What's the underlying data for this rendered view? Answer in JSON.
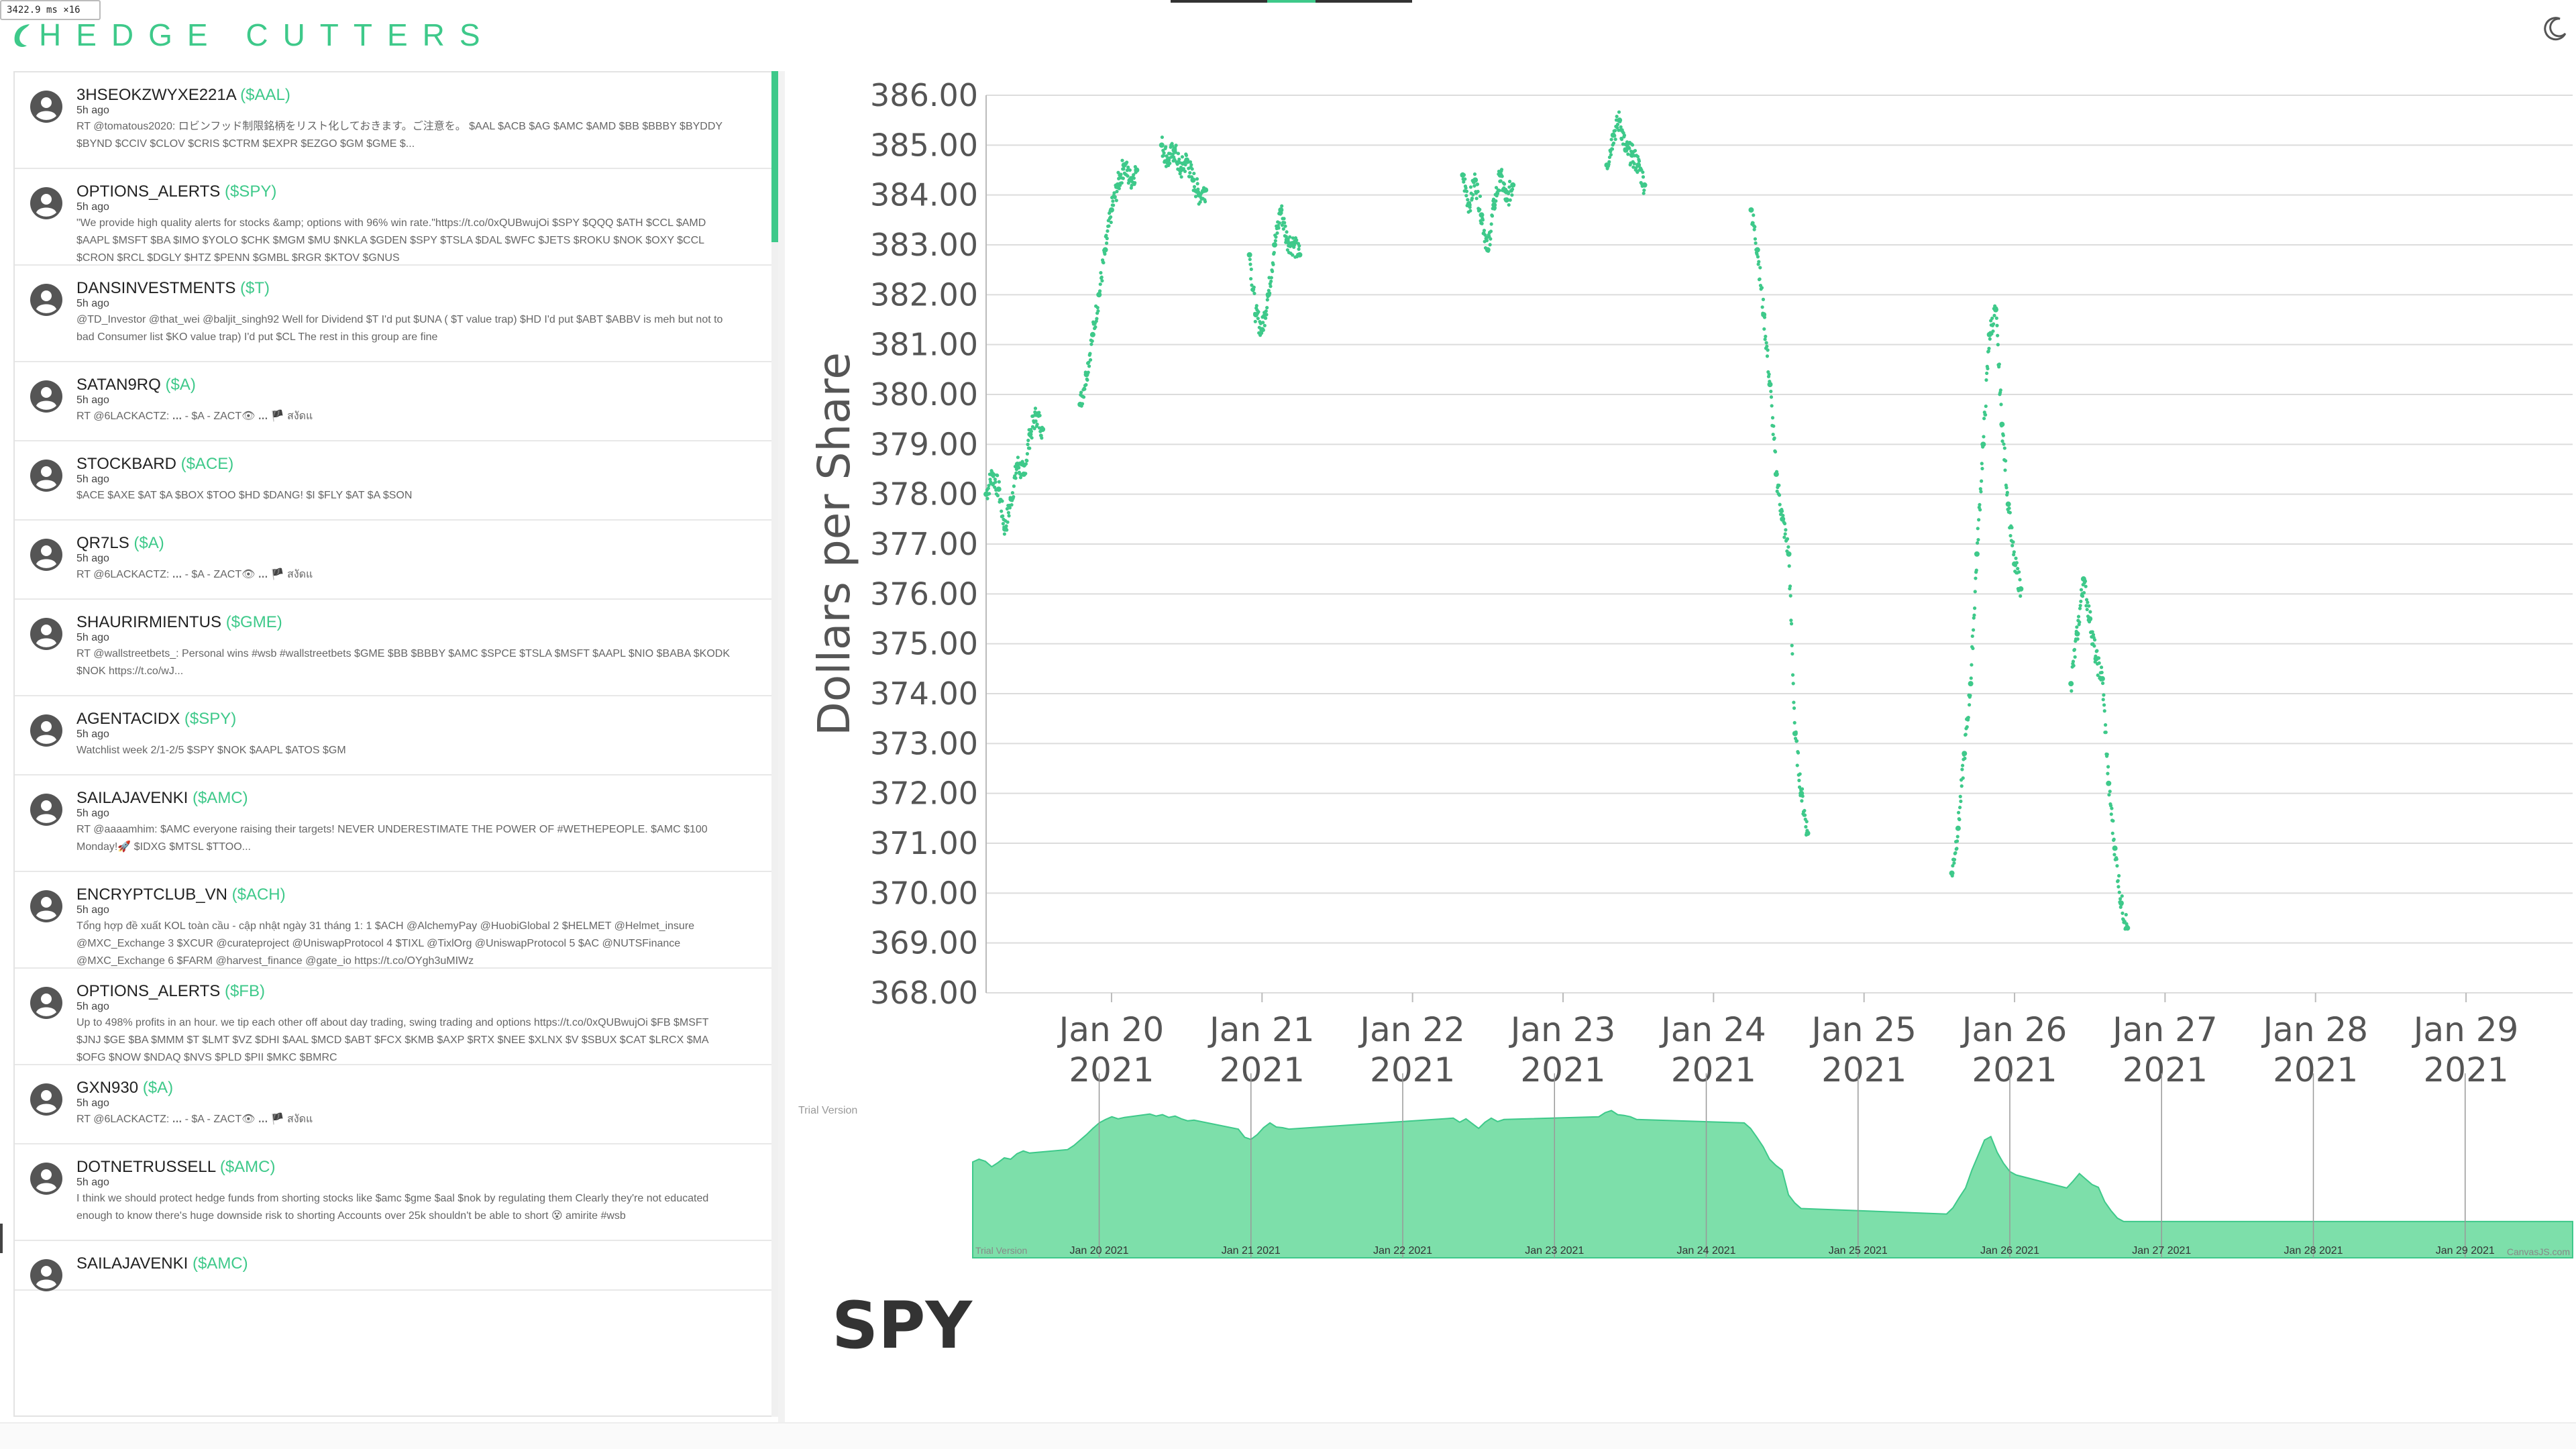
{
  "perf": {
    "readout": "3422.9 ms ×16"
  },
  "brand": {
    "title": "HEDGE CUTTERS"
  },
  "colors": {
    "accent": "#3ec98a",
    "accent_light": "#7ddfaa",
    "text_dark": "#333333"
  },
  "icons": {
    "theme": "moon-icon",
    "avatar": "user-avatar-icon",
    "logo": "leaf-logo-icon"
  },
  "feed": [
    {
      "handle": "3HSEOKZWYXE221A",
      "ticker": "($AAL)",
      "time": "5h ago",
      "text": "RT @tomatous2020: ロビンフッド制限銘柄をリスト化しておきます。ご注意を。 $AAL $ACB $AG $AMC $AMD $BB $BBBY $BYDDY $BYND $CCIV $CLOV $CRIS $CTRM $EXPR $EZGO $GM $GME $..."
    },
    {
      "handle": "OPTIONS_ALERTS",
      "ticker": "($SPY)",
      "time": "5h ago",
      "text": "\"We provide high quality alerts for stocks &amp; options with 96% win rate.\"https://t.co/0xQUBwujOi $SPY $QQQ $ATH $CCL $AMD $AAPL $MSFT $BA $IMO $YOLO $CHK $MGM $MU $NKLA $GDEN $SPY $TSLA $DAL $WFC $JETS $ROKU $NOK $OXY $CCL $CRON $RCL $DGLY $HTZ $PENN $GMBL $RGR $KTOV $GNUS"
    },
    {
      "handle": "DANSINVESTMENTS",
      "ticker": "($T)",
      "time": "5h ago",
      "text": "@TD_Investor @that_wei @baljit_singh92 Well for Dividend $T I'd put $UNA ( $T value trap) $HD I'd put $ABT $ABBV is meh but not to bad Consumer list $KO value trap) I'd put $CL The rest in this group are fine"
    },
    {
      "handle": "SATAN9RQ",
      "ticker": "($A)",
      "time": "5h ago",
      "text": "RT @6LACKACTZ: ꓸꓸꓸ - $A - ZACT👁 ꓸꓸꓸ 🏴 สงัดแ"
    },
    {
      "handle": "STOCKBARD",
      "ticker": "($ACE)",
      "time": "5h ago",
      "text": "$ACE $AXE $AT $A $BOX $TOO $HD $DANG! $I $FLY $AT $A $SON"
    },
    {
      "handle": "QR7LS",
      "ticker": "($A)",
      "time": "5h ago",
      "text": "RT @6LACKACTZ: ꓸꓸꓸ - $A - ZACT👁 ꓸꓸꓸ 🏴 สงัดแ"
    },
    {
      "handle": "SHAURIRMIENTUS",
      "ticker": "($GME)",
      "time": "5h ago",
      "text": "RT @wallstreetbets_: Personal wins #wsb #wallstreetbets $GME $BB $BBBY $AMC $SPCE $TSLA $MSFT $AAPL $NIO $BABA $KODK $NOK https://t.co/wJ..."
    },
    {
      "handle": "AGENTACIDX",
      "ticker": "($SPY)",
      "time": "5h ago",
      "text": "Watchlist week 2/1-2/5 $SPY $NOK $AAPL $ATOS $GM"
    },
    {
      "handle": "SAILAJAVENKI",
      "ticker": "($AMC)",
      "time": "5h ago",
      "text": "RT @aaaamhim: $AMC everyone raising their targets! NEVER UNDERESTIMATE THE POWER OF #WETHEPEOPLE. $AMC $100 Monday!🚀 $IDXG $MTSL $TTOO..."
    },
    {
      "handle": "ENCRYPTCLUB_VN",
      "ticker": "($ACH)",
      "time": "5h ago",
      "text": "Tổng hợp đề xuất KOL toàn cầu - cập nhật ngày 31 tháng 1: 1 $ACH @AlchemyPay @HuobiGlobal 2 $HELMET @Helmet_insure @MXC_Exchange 3 $XCUR @curateproject @UniswapProtocol 4 $TIXL @TixlOrg @UniswapProtocol 5 $AC @NUTSFinance @MXC_Exchange 6 $FARM @harvest_finance @gate_io https://t.co/OYgh3uMIWz"
    },
    {
      "handle": "OPTIONS_ALERTS",
      "ticker": "($FB)",
      "time": "5h ago",
      "text": "Up to 498% profits in an hour. we tip each other off about day trading, swing trading and options https://t.co/0xQUBwujOi $FB $MSFT $JNJ $GE $BA $MMM $T $LMT $VZ $DHI $AAL $MCD $ABT $FCX $KMB $AXP $RTX $NEE $XLNX $V $SBUX $CAT $LRCX $MA $OFG $NOW $NDAQ $NVS $PLD $PII $MKC $BMRC"
    },
    {
      "handle": "GXN930",
      "ticker": "($A)",
      "time": "5h ago",
      "text": "RT @6LACKACTZ: ꓸꓸꓸ - $A - ZACT👁 ꓸꓸꓸ 🏴 สงัดแ"
    },
    {
      "handle": "DOTNETRUSSELL",
      "ticker": "($AMC)",
      "time": "5h ago",
      "text": "I think we should protect hedge funds from shorting stocks like $amc $gme $aal $nok by regulating them Clearly they're not educated enough to know there's huge downside risk to shorting Accounts over 25k shouldn't be able to short 😵 amirite #wsb"
    },
    {
      "handle": "SAILAJAVENKI",
      "ticker": "($AMC)",
      "time": "",
      "text": ""
    }
  ],
  "chart": {
    "symbol": "SPY",
    "trial_label": "Trial Version",
    "credit": "CanvasJS.com"
  },
  "chart_data": [
    {
      "type": "scatter",
      "title": "",
      "xlabel": "",
      "ylabel": "Dollars per Share",
      "ylim": [
        368,
        386
      ],
      "yticks": [
        "368.00",
        "369.00",
        "370.00",
        "371.00",
        "372.00",
        "373.00",
        "374.00",
        "375.00",
        "376.00",
        "377.00",
        "378.00",
        "379.00",
        "380.00",
        "381.00",
        "382.00",
        "383.00",
        "384.00",
        "385.00",
        "386.00"
      ],
      "xticks": [
        {
          "date": "2021-01-20",
          "line1": "Jan 20",
          "line2": "2021"
        },
        {
          "date": "2021-01-21",
          "line1": "Jan 21",
          "line2": "2021"
        },
        {
          "date": "2021-01-22",
          "line1": "Jan 22",
          "line2": "2021"
        },
        {
          "date": "2021-01-23",
          "line1": "Jan 23",
          "line2": "2021"
        },
        {
          "date": "2021-01-24",
          "line1": "Jan 24",
          "line2": "2021"
        },
        {
          "date": "2021-01-25",
          "line1": "Jan 25",
          "line2": "2021"
        },
        {
          "date": "2021-01-26",
          "line1": "Jan 26",
          "line2": "2021"
        },
        {
          "date": "2021-01-27",
          "line1": "Jan 27",
          "line2": "2021"
        },
        {
          "date": "2021-01-28",
          "line1": "Jan 28",
          "line2": "2021"
        },
        {
          "date": "2021-01-29",
          "line1": "Jan 29",
          "line2": "2021"
        }
      ],
      "xlim": [
        "2021-01-19T04:00",
        "2021-01-29T17:00"
      ],
      "grid": true,
      "series": [
        {
          "color": "#3ec98a",
          "points": [
            [
              "2021-01-19T04:00",
              378.0
            ],
            [
              "2021-01-19T05:00",
              378.4
            ],
            [
              "2021-01-19T06:00",
              378.1
            ],
            [
              "2021-01-19T07:00",
              377.3
            ],
            [
              "2021-01-19T08:00",
              377.9
            ],
            [
              "2021-01-19T09:00",
              378.6
            ],
            [
              "2021-01-19T10:00",
              378.4
            ],
            [
              "2021-01-19T11:00",
              379.2
            ],
            [
              "2021-01-19T12:00",
              379.6
            ],
            [
              "2021-01-19T13:00",
              379.3
            ],
            [
              "2021-01-19T19:00",
              379.8
            ],
            [
              "2021-01-19T20:00",
              380.4
            ],
            [
              "2021-01-19T21:00",
              381.2
            ],
            [
              "2021-01-19T22:00",
              382.0
            ],
            [
              "2021-01-19T23:00",
              382.9
            ],
            [
              "2021-01-20T00:00",
              383.7
            ],
            [
              "2021-01-20T01:00",
              384.2
            ],
            [
              "2021-01-20T02:00",
              384.6
            ],
            [
              "2021-01-20T03:00",
              384.3
            ],
            [
              "2021-01-20T04:00",
              384.5
            ],
            [
              "2021-01-20T08:00",
              385.0
            ],
            [
              "2021-01-20T09:00",
              384.7
            ],
            [
              "2021-01-20T10:00",
              384.9
            ],
            [
              "2021-01-20T11:00",
              384.5
            ],
            [
              "2021-01-20T12:00",
              384.7
            ],
            [
              "2021-01-20T13:00",
              384.3
            ],
            [
              "2021-01-20T14:00",
              384.0
            ],
            [
              "2021-01-20T15:00",
              384.1
            ],
            [
              "2021-01-20T22:00",
              382.8
            ],
            [
              "2021-01-20T23:00",
              381.6
            ],
            [
              "2021-01-21T00:00",
              381.3
            ],
            [
              "2021-01-21T01:00",
              382.0
            ],
            [
              "2021-01-21T02:00",
              383.0
            ],
            [
              "2021-01-21T03:00",
              383.7
            ],
            [
              "2021-01-21T04:00",
              383.1
            ],
            [
              "2021-01-21T05:00",
              383.0
            ],
            [
              "2021-01-21T06:00",
              382.8
            ],
            [
              "2021-01-22T08:00",
              384.4
            ],
            [
              "2021-01-22T09:00",
              383.8
            ],
            [
              "2021-01-22T10:00",
              384.3
            ],
            [
              "2021-01-22T11:00",
              383.6
            ],
            [
              "2021-01-22T12:00",
              382.9
            ],
            [
              "2021-01-22T13:00",
              383.8
            ],
            [
              "2021-01-22T14:00",
              384.4
            ],
            [
              "2021-01-22T15:00",
              383.9
            ],
            [
              "2021-01-22T16:00",
              384.2
            ],
            [
              "2021-01-23T07:00",
              384.6
            ],
            [
              "2021-01-23T08:00",
              385.2
            ],
            [
              "2021-01-23T09:00",
              385.5
            ],
            [
              "2021-01-23T10:00",
              384.9
            ],
            [
              "2021-01-23T11:00",
              384.8
            ],
            [
              "2021-01-23T12:00",
              384.6
            ],
            [
              "2021-01-23T13:00",
              384.2
            ],
            [
              "2021-01-24T06:00",
              383.7
            ],
            [
              "2021-01-24T07:00",
              382.9
            ],
            [
              "2021-01-24T08:00",
              381.6
            ],
            [
              "2021-01-24T09:00",
              380.2
            ],
            [
              "2021-01-24T10:00",
              378.4
            ],
            [
              "2021-01-24T11:00",
              377.5
            ],
            [
              "2021-01-24T12:00",
              376.8
            ],
            [
              "2021-01-24T13:00",
              373.2
            ],
            [
              "2021-01-24T14:00",
              372.0
            ],
            [
              "2021-01-24T15:00",
              371.2
            ],
            [
              "2021-01-25T14:00",
              370.4
            ],
            [
              "2021-01-25T15:00",
              371.3
            ],
            [
              "2021-01-25T16:00",
              372.8
            ],
            [
              "2021-01-25T17:00",
              374.2
            ],
            [
              "2021-01-25T18:00",
              376.8
            ],
            [
              "2021-01-25T19:00",
              379.0
            ],
            [
              "2021-01-25T20:00",
              381.2
            ],
            [
              "2021-01-25T21:00",
              381.7
            ],
            [
              "2021-01-25T22:00",
              379.4
            ],
            [
              "2021-01-25T23:00",
              377.8
            ],
            [
              "2021-01-26T00:00",
              376.6
            ],
            [
              "2021-01-26T01:00",
              376.1
            ],
            [
              "2021-01-26T09:00",
              374.2
            ],
            [
              "2021-01-26T10:00",
              375.2
            ],
            [
              "2021-01-26T11:00",
              376.3
            ],
            [
              "2021-01-26T12:00",
              375.5
            ],
            [
              "2021-01-26T13:00",
              374.7
            ],
            [
              "2021-01-26T14:00",
              374.3
            ],
            [
              "2021-01-26T15:00",
              372.2
            ],
            [
              "2021-01-26T16:00",
              370.9
            ],
            [
              "2021-01-26T17:00",
              369.8
            ],
            [
              "2021-01-26T18:00",
              369.3
            ]
          ]
        }
      ]
    },
    {
      "type": "area",
      "role": "navigator",
      "xticks": [
        "Jan 20 2021",
        "Jan 21 2021",
        "Jan 22 2021",
        "Jan 23 2021",
        "Jan 24 2021",
        "Jan 25 2021",
        "Jan 26 2021",
        "Jan 27 2021",
        "Jan 28 2021",
        "Jan 29 2021"
      ]
    }
  ]
}
